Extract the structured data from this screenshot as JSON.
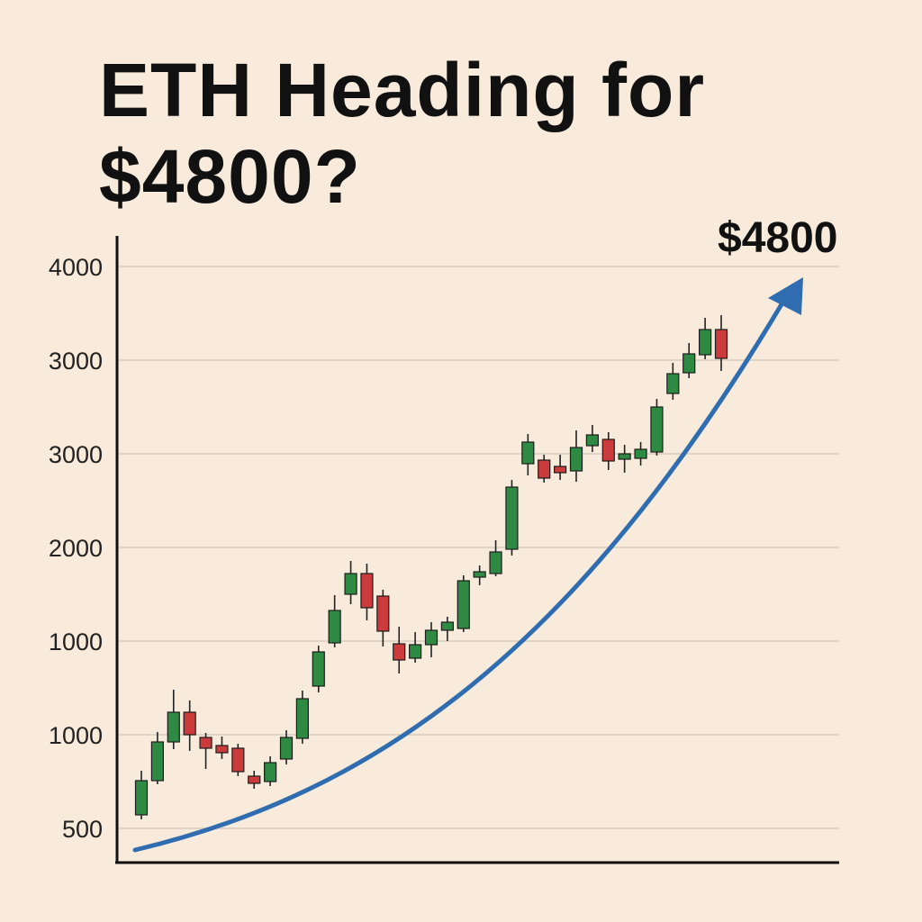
{
  "title": "ETH Heading for $4800?",
  "colors": {
    "background": "#f8ebdc",
    "bullish": "#2e8a43",
    "bearish": "#cc3b3b",
    "arrow": "#2f6db0",
    "wick": "#222222",
    "grid": "#d8ccbf"
  },
  "chart_data": {
    "type": "candlestick",
    "title": "ETH Heading for $4800?",
    "y_tick_labels": [
      "500",
      "1000",
      "1000",
      "2000",
      "3000",
      "3000",
      "4000"
    ],
    "grid": true,
    "annotation": {
      "label": "$4800",
      "kind": "upward trend arrow"
    },
    "candles": [
      {
        "open": 530,
        "close": 910,
        "high": 1020,
        "low": 480
      },
      {
        "open": 910,
        "close": 1340,
        "high": 1450,
        "low": 870
      },
      {
        "open": 1340,
        "close": 1670,
        "high": 1920,
        "low": 1260
      },
      {
        "open": 1670,
        "close": 1420,
        "high": 1800,
        "low": 1240
      },
      {
        "open": 1390,
        "close": 1270,
        "high": 1440,
        "low": 1040
      },
      {
        "open": 1300,
        "close": 1220,
        "high": 1400,
        "low": 1150
      },
      {
        "open": 1270,
        "close": 1010,
        "high": 1320,
        "low": 960
      },
      {
        "open": 960,
        "close": 880,
        "high": 1020,
        "low": 820
      },
      {
        "open": 900,
        "close": 1110,
        "high": 1180,
        "low": 850
      },
      {
        "open": 1150,
        "close": 1390,
        "high": 1470,
        "low": 1090
      },
      {
        "open": 1380,
        "close": 1820,
        "high": 1910,
        "low": 1320
      },
      {
        "open": 1960,
        "close": 2340,
        "high": 2410,
        "low": 1890
      },
      {
        "open": 2440,
        "close": 2800,
        "high": 2970,
        "low": 2390
      },
      {
        "open": 2980,
        "close": 3210,
        "high": 3350,
        "low": 2870
      },
      {
        "open": 3210,
        "close": 2830,
        "high": 3320,
        "low": 2690
      },
      {
        "open": 2960,
        "close": 2570,
        "high": 3030,
        "low": 2400
      },
      {
        "open": 2430,
        "close": 2250,
        "high": 2620,
        "low": 2100
      },
      {
        "open": 2270,
        "close": 2420,
        "high": 2560,
        "low": 2220
      },
      {
        "open": 2420,
        "close": 2580,
        "high": 2670,
        "low": 2280
      },
      {
        "open": 2580,
        "close": 2670,
        "high": 2730,
        "low": 2460
      },
      {
        "open": 2600,
        "close": 3130,
        "high": 3190,
        "low": 2560
      },
      {
        "open": 3170,
        "close": 3230,
        "high": 3300,
        "low": 3080
      },
      {
        "open": 3210,
        "close": 3450,
        "high": 3580,
        "low": 3180
      },
      {
        "open": 3480,
        "close": 4170,
        "high": 4250,
        "low": 3410
      },
      {
        "open": 4430,
        "close": 4670,
        "high": 4760,
        "low": 4300
      },
      {
        "open": 4470,
        "close": 4270,
        "high": 4530,
        "low": 4220
      },
      {
        "open": 4400,
        "close": 4330,
        "high": 4530,
        "low": 4250
      },
      {
        "open": 4350,
        "close": 4610,
        "high": 4800,
        "low": 4230
      },
      {
        "open": 4630,
        "close": 4750,
        "high": 4860,
        "low": 4560
      },
      {
        "open": 4700,
        "close": 4460,
        "high": 4780,
        "low": 4360
      },
      {
        "open": 4480,
        "close": 4540,
        "high": 4640,
        "low": 4330
      },
      {
        "open": 4490,
        "close": 4590,
        "high": 4670,
        "low": 4410
      },
      {
        "open": 4560,
        "close": 5060,
        "high": 5150,
        "low": 4520
      },
      {
        "open": 5210,
        "close": 5430,
        "high": 5550,
        "low": 5140
      },
      {
        "open": 5440,
        "close": 5650,
        "high": 5770,
        "low": 5380
      },
      {
        "open": 5640,
        "close": 5920,
        "high": 6050,
        "low": 5590
      },
      {
        "open": 5920,
        "close": 5600,
        "high": 6080,
        "low": 5460
      }
    ]
  }
}
